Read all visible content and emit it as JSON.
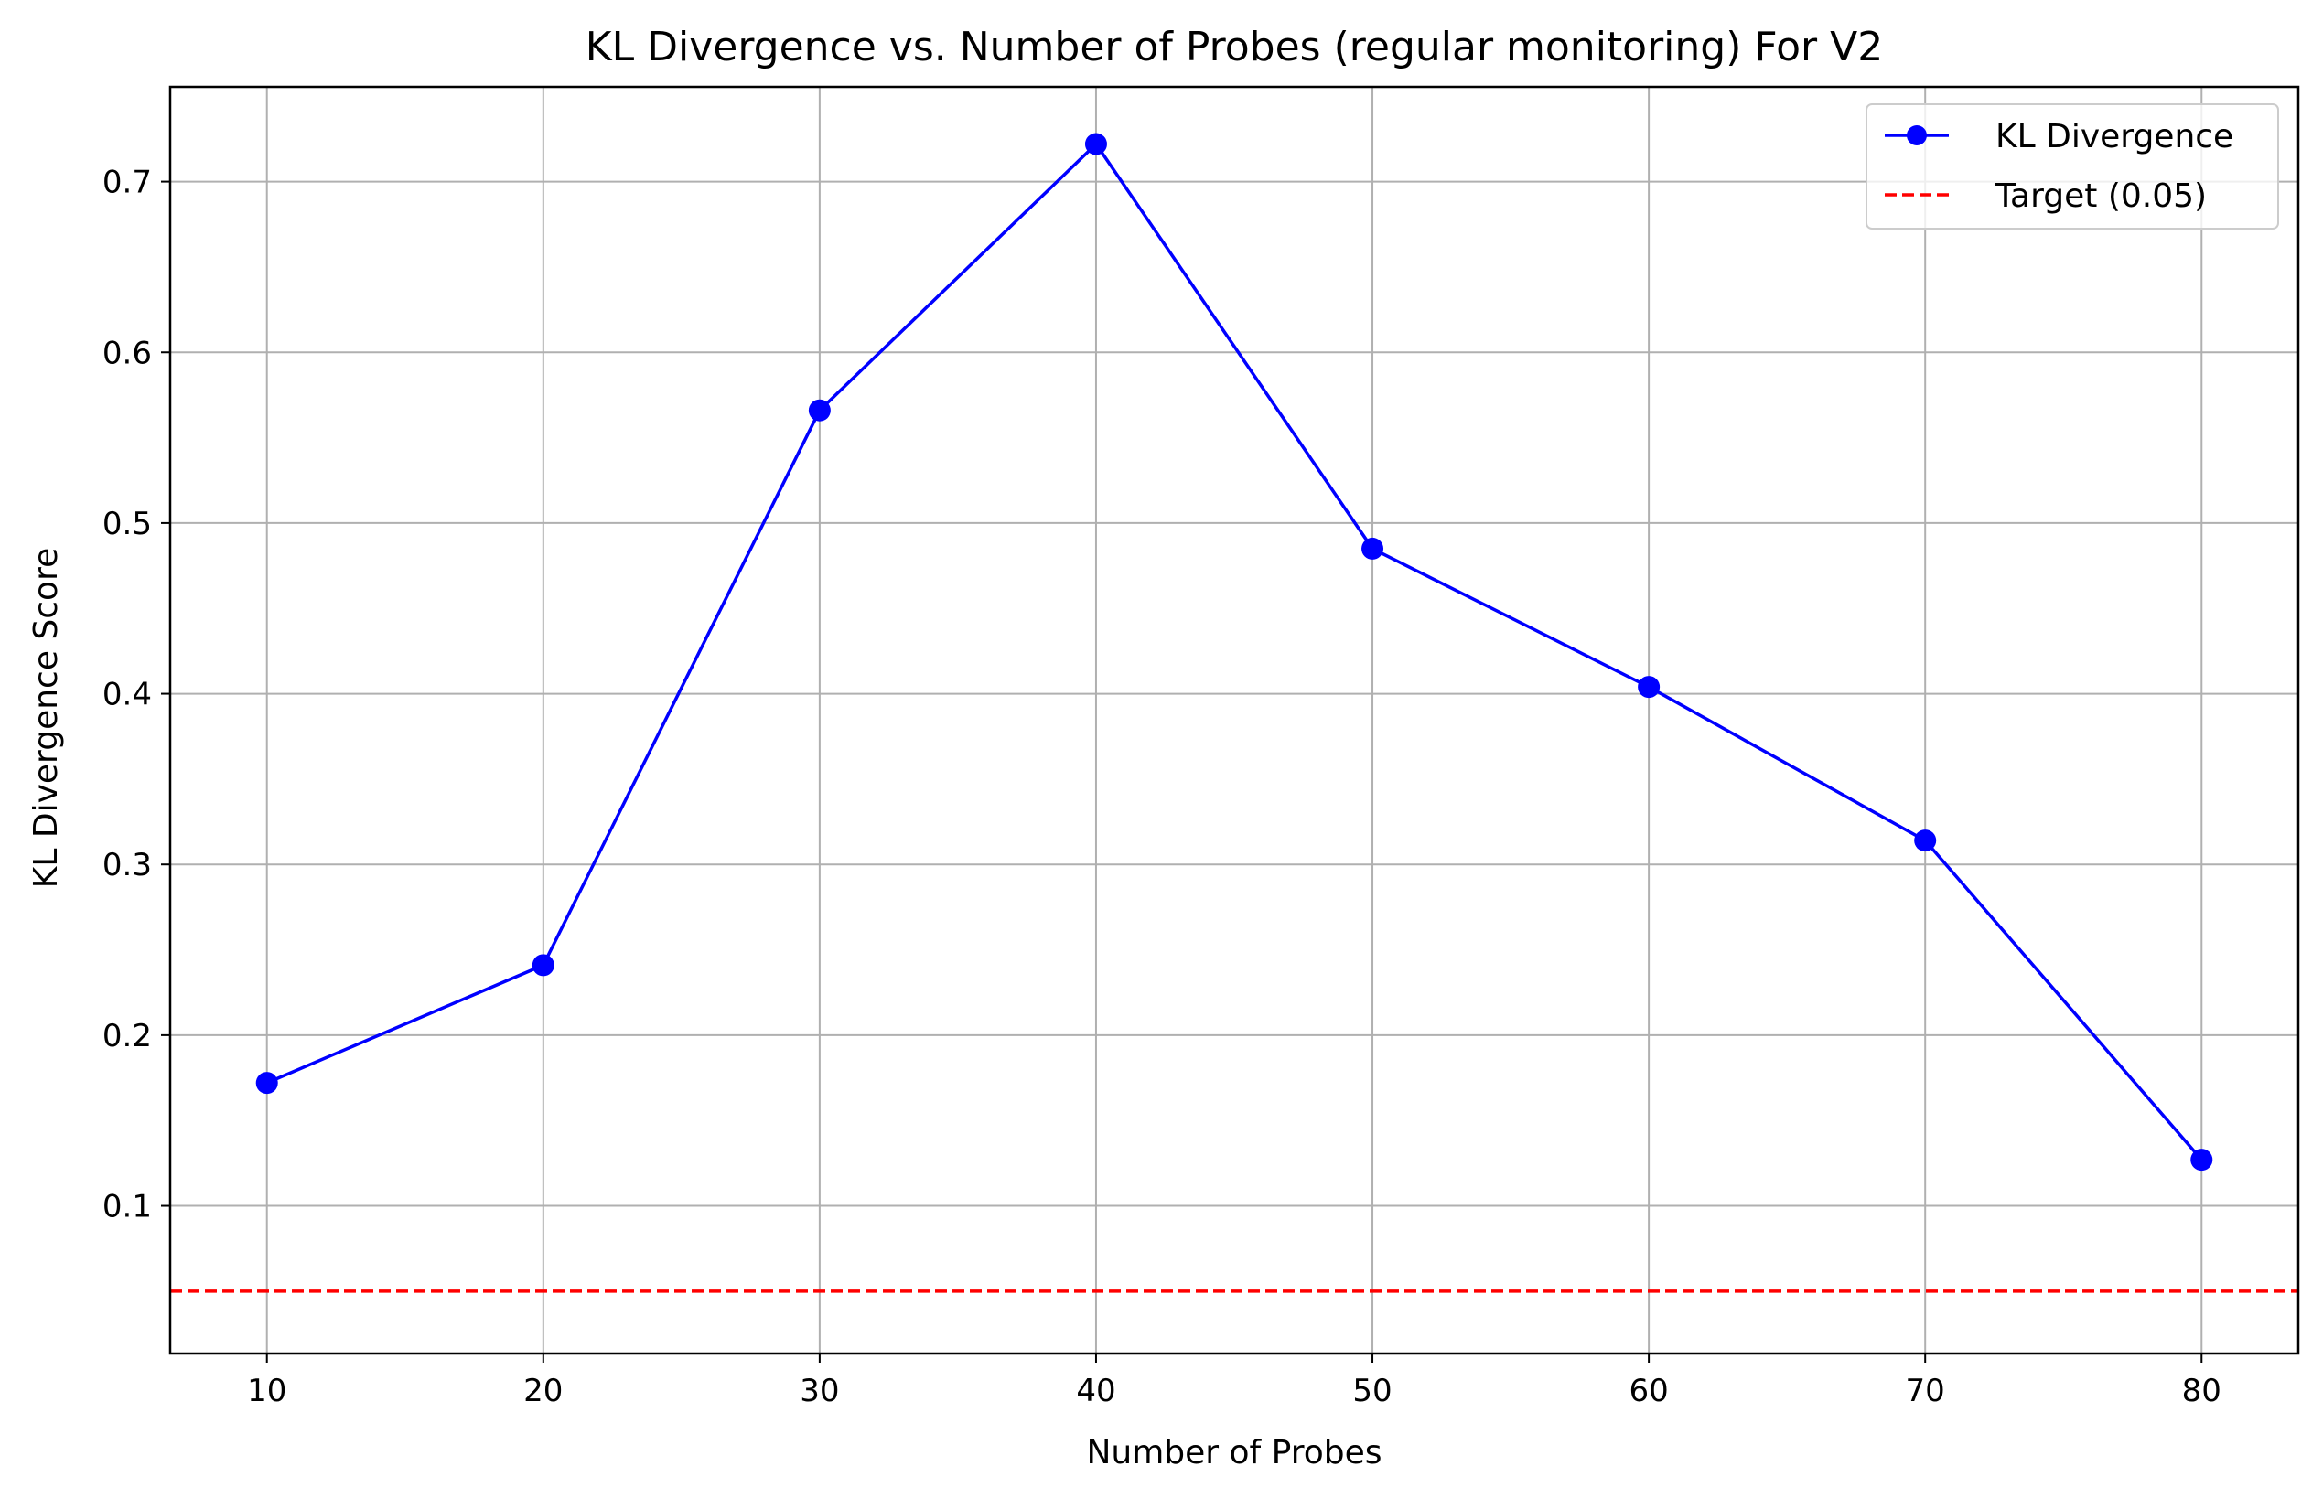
{
  "chart_data": {
    "type": "line",
    "title": "KL Divergence vs. Number of Probes (regular monitoring) For V2",
    "xlabel": "Number of Probes",
    "ylabel": "KL Divergence Score",
    "x": [
      10,
      20,
      30,
      40,
      50,
      60,
      70,
      80
    ],
    "xticks": [
      "10",
      "20",
      "30",
      "40",
      "50",
      "60",
      "70",
      "80"
    ],
    "xlim": [
      6.5,
      83.5
    ],
    "yticks": [
      "0.1",
      "0.2",
      "0.3",
      "0.4",
      "0.5",
      "0.6",
      "0.7"
    ],
    "ylim": [
      0.0135,
      0.7555
    ],
    "grid": true,
    "legend_position": "top-right",
    "series": [
      {
        "name": "KL Divergence",
        "style": "solid-line-circle-markers",
        "color": "#0000ff",
        "values": [
          0.172,
          0.241,
          0.566,
          0.722,
          0.485,
          0.404,
          0.314,
          0.127
        ]
      }
    ],
    "reference_lines": [
      {
        "name": "Target (0.05)",
        "style": "dashed",
        "color": "#ff0000",
        "y": 0.05
      }
    ]
  }
}
